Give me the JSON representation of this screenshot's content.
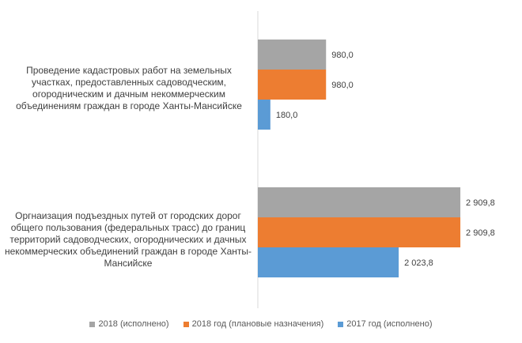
{
  "chart_data": {
    "type": "bar",
    "orientation": "horizontal",
    "categories": [
      "Проведение кадастровых работ на земельных участках, предоставленных садоводческим, огородническим и дачным некоммерческим объединениям граждан в городе Ханты-Мансийске",
      "Оргнаизация подъездных путей от городских дорог общего пользования (федеральных трасс) до границ территорий садоводческих, огороднических и дачных некоммерческих объединений граждан в городе Ханты-Мансийске"
    ],
    "series": [
      {
        "name": "2018 (исполнено)",
        "color": "#a5a5a5",
        "values": [
          980.0,
          2909.8
        ],
        "labels": [
          "980,0",
          "2 909,8"
        ]
      },
      {
        "name": "2018 год (плановые назначения)",
        "color": "#ed7d31",
        "values": [
          980.0,
          2909.8
        ],
        "labels": [
          "980,0",
          "2 909,8"
        ]
      },
      {
        "name": "2017 год (исполнено)",
        "color": "#5b9bd5",
        "values": [
          180.0,
          2023.8
        ],
        "labels": [
          "180,0",
          "2 023,8"
        ]
      }
    ],
    "xlim": [
      0,
      3000
    ],
    "grid": false,
    "legend_position": "bottom"
  }
}
